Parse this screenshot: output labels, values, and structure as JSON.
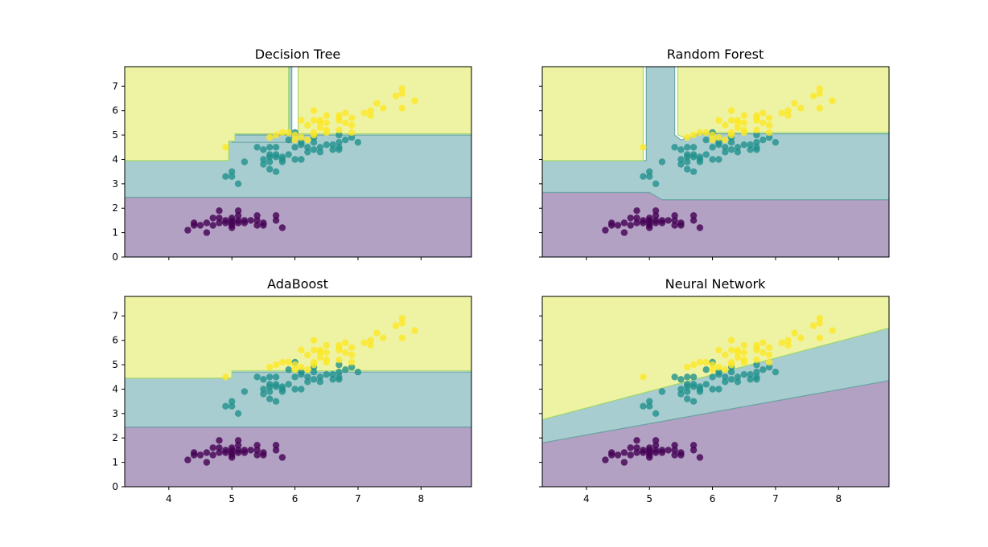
{
  "figure": {
    "xlim": [
      3.3,
      8.8
    ],
    "ylim": [
      0,
      7.8
    ],
    "xticks": [
      4,
      5,
      6,
      7,
      8
    ],
    "yticks": [
      0,
      1,
      2,
      3,
      4,
      5,
      6,
      7
    ],
    "region_colors": [
      "#b3a1c3",
      "#a8cdd0",
      "#eef3a3"
    ],
    "boundary_colors": [
      "#7a6ca8",
      "#6aa8a4",
      "#a6d86c"
    ],
    "point_colors": [
      "#440154",
      "#21918c",
      "#fde725"
    ],
    "xtick_labels_on": [
      "adaboost",
      "neural-network"
    ],
    "ytick_labels_on": [
      "decision-tree",
      "adaboost"
    ]
  },
  "points": {
    "class0": [
      [
        4.3,
        1.1
      ],
      [
        4.4,
        1.3
      ],
      [
        4.4,
        1.4
      ],
      [
        4.5,
        1.3
      ],
      [
        4.6,
        1.0
      ],
      [
        4.6,
        1.4
      ],
      [
        4.7,
        1.3
      ],
      [
        4.7,
        1.6
      ],
      [
        4.8,
        1.4
      ],
      [
        4.8,
        1.6
      ],
      [
        4.8,
        1.9
      ],
      [
        4.9,
        1.4
      ],
      [
        4.9,
        1.5
      ],
      [
        5.0,
        1.2
      ],
      [
        5.0,
        1.3
      ],
      [
        5.0,
        1.4
      ],
      [
        5.0,
        1.5
      ],
      [
        5.0,
        1.6
      ],
      [
        5.1,
        1.4
      ],
      [
        5.1,
        1.5
      ],
      [
        5.1,
        1.7
      ],
      [
        5.1,
        1.9
      ],
      [
        5.2,
        1.4
      ],
      [
        5.2,
        1.5
      ],
      [
        5.3,
        1.5
      ],
      [
        5.4,
        1.3
      ],
      [
        5.4,
        1.5
      ],
      [
        5.4,
        1.7
      ],
      [
        5.5,
        1.3
      ],
      [
        5.5,
        1.4
      ],
      [
        5.7,
        1.5
      ],
      [
        5.7,
        1.7
      ],
      [
        5.8,
        1.2
      ]
    ],
    "class1": [
      [
        4.9,
        3.3
      ],
      [
        5.0,
        3.3
      ],
      [
        5.0,
        3.5
      ],
      [
        5.1,
        3.0
      ],
      [
        5.2,
        3.9
      ],
      [
        5.4,
        4.5
      ],
      [
        5.5,
        3.8
      ],
      [
        5.5,
        4.0
      ],
      [
        5.5,
        4.4
      ],
      [
        5.6,
        3.6
      ],
      [
        5.6,
        3.9
      ],
      [
        5.6,
        4.1
      ],
      [
        5.6,
        4.2
      ],
      [
        5.6,
        4.5
      ],
      [
        5.7,
        3.5
      ],
      [
        5.7,
        4.1
      ],
      [
        5.7,
        4.2
      ],
      [
        5.7,
        4.5
      ],
      [
        5.8,
        3.9
      ],
      [
        5.8,
        4.0
      ],
      [
        5.8,
        4.1
      ],
      [
        5.9,
        4.2
      ],
      [
        5.9,
        4.8
      ],
      [
        6.0,
        4.0
      ],
      [
        6.0,
        4.5
      ],
      [
        6.0,
        5.1
      ],
      [
        6.1,
        4.0
      ],
      [
        6.1,
        4.6
      ],
      [
        6.1,
        4.7
      ],
      [
        6.2,
        4.3
      ],
      [
        6.2,
        4.5
      ],
      [
        6.3,
        4.4
      ],
      [
        6.3,
        4.7
      ],
      [
        6.3,
        4.9
      ],
      [
        6.4,
        4.3
      ],
      [
        6.4,
        4.5
      ],
      [
        6.5,
        4.6
      ],
      [
        6.6,
        4.4
      ],
      [
        6.6,
        4.6
      ],
      [
        6.7,
        4.4
      ],
      [
        6.7,
        4.5
      ],
      [
        6.7,
        4.7
      ],
      [
        6.7,
        5.0
      ],
      [
        6.8,
        4.8
      ],
      [
        6.9,
        4.9
      ],
      [
        7.0,
        4.7
      ]
    ],
    "class2": [
      [
        4.9,
        4.5
      ],
      [
        5.6,
        4.9
      ],
      [
        5.7,
        5.0
      ],
      [
        5.8,
        5.1
      ],
      [
        5.9,
        5.1
      ],
      [
        6.0,
        4.8
      ],
      [
        6.0,
        5.0
      ],
      [
        6.1,
        4.9
      ],
      [
        6.1,
        5.6
      ],
      [
        6.2,
        4.8
      ],
      [
        6.2,
        5.4
      ],
      [
        6.3,
        5.0
      ],
      [
        6.3,
        5.1
      ],
      [
        6.3,
        5.6
      ],
      [
        6.3,
        6.0
      ],
      [
        6.4,
        5.3
      ],
      [
        6.4,
        5.5
      ],
      [
        6.4,
        5.6
      ],
      [
        6.5,
        5.1
      ],
      [
        6.5,
        5.2
      ],
      [
        6.5,
        5.5
      ],
      [
        6.5,
        5.8
      ],
      [
        6.7,
        5.2
      ],
      [
        6.7,
        5.6
      ],
      [
        6.7,
        5.7
      ],
      [
        6.7,
        5.8
      ],
      [
        6.8,
        5.5
      ],
      [
        6.8,
        5.9
      ],
      [
        6.9,
        5.1
      ],
      [
        6.9,
        5.4
      ],
      [
        6.9,
        5.7
      ],
      [
        7.1,
        5.9
      ],
      [
        7.2,
        5.8
      ],
      [
        7.2,
        6.0
      ],
      [
        7.3,
        6.3
      ],
      [
        7.4,
        6.1
      ],
      [
        7.6,
        6.6
      ],
      [
        7.7,
        6.1
      ],
      [
        7.7,
        6.7
      ],
      [
        7.7,
        6.9
      ],
      [
        7.9,
        6.4
      ]
    ]
  },
  "chart_data": [
    {
      "type": "scatter",
      "title": "Decision Tree",
      "xlim": [
        3.3,
        8.8
      ],
      "ylim": [
        0,
        7.8
      ],
      "regions": [
        {
          "class": 0,
          "polygon": [
            [
              3.3,
              0
            ],
            [
              8.8,
              0
            ],
            [
              8.8,
              2.45
            ],
            [
              3.3,
              2.45
            ]
          ]
        },
        {
          "class": 1,
          "polygon": [
            [
              3.3,
              2.45
            ],
            [
              8.8,
              2.45
            ],
            [
              8.8,
              5.0
            ],
            [
              5.0,
              5.0
            ],
            [
              5.0,
              4.7
            ],
            [
              5.95,
              4.7
            ],
            [
              5.95,
              7.8
            ],
            [
              4.95,
              7.8
            ],
            [
              4.95,
              3.95
            ],
            [
              3.3,
              3.95
            ]
          ]
        },
        {
          "class": 2,
          "polygon": [
            [
              3.3,
              3.95
            ],
            [
              4.95,
              3.95
            ],
            [
              4.95,
              4.75
            ],
            [
              5.05,
              4.75
            ],
            [
              5.05,
              5.05
            ],
            [
              5.9,
              5.05
            ],
            [
              5.9,
              7.8
            ],
            [
              3.3,
              7.8
            ]
          ]
        },
        {
          "class": 2,
          "polygon": [
            [
              6.05,
              7.8
            ],
            [
              6.05,
              5.05
            ],
            [
              8.8,
              5.05
            ],
            [
              8.8,
              7.8
            ]
          ]
        }
      ]
    },
    {
      "type": "scatter",
      "title": "Random Forest",
      "xlim": [
        3.3,
        8.8
      ],
      "ylim": [
        0,
        7.8
      ],
      "regions": [
        {
          "class": 0,
          "polygon": [
            [
              3.3,
              0
            ],
            [
              8.8,
              0
            ],
            [
              8.8,
              2.35
            ],
            [
              5.2,
              2.35
            ],
            [
              5.0,
              2.65
            ],
            [
              3.3,
              2.65
            ]
          ]
        },
        {
          "class": 1,
          "polygon": [
            [
              3.3,
              2.65
            ],
            [
              5.0,
              2.65
            ],
            [
              5.2,
              2.35
            ],
            [
              8.8,
              2.35
            ],
            [
              8.8,
              5.05
            ],
            [
              5.8,
              5.05
            ],
            [
              5.5,
              4.8
            ],
            [
              5.4,
              5.0
            ],
            [
              5.4,
              7.8
            ],
            [
              4.95,
              7.8
            ],
            [
              4.95,
              3.95
            ],
            [
              3.3,
              3.95
            ]
          ]
        },
        {
          "class": 2,
          "polygon": [
            [
              3.3,
              3.95
            ],
            [
              4.9,
              3.95
            ],
            [
              4.9,
              7.8
            ],
            [
              3.3,
              7.8
            ]
          ]
        },
        {
          "class": 2,
          "polygon": [
            [
              5.45,
              7.8
            ],
            [
              5.45,
              5.0
            ],
            [
              5.6,
              4.85
            ],
            [
              5.8,
              5.1
            ],
            [
              8.8,
              5.1
            ],
            [
              8.8,
              7.8
            ]
          ]
        }
      ]
    },
    {
      "type": "scatter",
      "title": "AdaBoost",
      "xlim": [
        3.3,
        8.8
      ],
      "ylim": [
        0,
        7.8
      ],
      "regions": [
        {
          "class": 0,
          "polygon": [
            [
              3.3,
              0
            ],
            [
              8.8,
              0
            ],
            [
              8.8,
              2.45
            ],
            [
              3.3,
              2.45
            ]
          ]
        },
        {
          "class": 1,
          "polygon": [
            [
              3.3,
              2.45
            ],
            [
              8.8,
              2.45
            ],
            [
              8.8,
              4.7
            ],
            [
              5.0,
              4.7
            ],
            [
              5.0,
              4.45
            ],
            [
              3.3,
              4.45
            ]
          ]
        },
        {
          "class": 2,
          "polygon": [
            [
              3.3,
              4.45
            ],
            [
              5.0,
              4.45
            ],
            [
              5.0,
              4.75
            ],
            [
              8.8,
              4.75
            ],
            [
              8.8,
              7.8
            ],
            [
              3.3,
              7.8
            ]
          ]
        }
      ]
    },
    {
      "type": "scatter",
      "title": "Neural Network",
      "xlim": [
        3.3,
        8.8
      ],
      "ylim": [
        0,
        7.8
      ],
      "regions": [
        {
          "class": 0,
          "polygon": [
            [
              3.3,
              0
            ],
            [
              8.8,
              0
            ],
            [
              8.8,
              4.35
            ],
            [
              3.3,
              1.8
            ]
          ]
        },
        {
          "class": 1,
          "polygon": [
            [
              3.3,
              1.8
            ],
            [
              8.8,
              4.35
            ],
            [
              8.8,
              6.5
            ],
            [
              3.3,
              2.75
            ]
          ]
        },
        {
          "class": 2,
          "polygon": [
            [
              3.3,
              2.75
            ],
            [
              8.8,
              6.5
            ],
            [
              8.8,
              7.8
            ],
            [
              3.3,
              7.8
            ]
          ]
        }
      ]
    }
  ]
}
